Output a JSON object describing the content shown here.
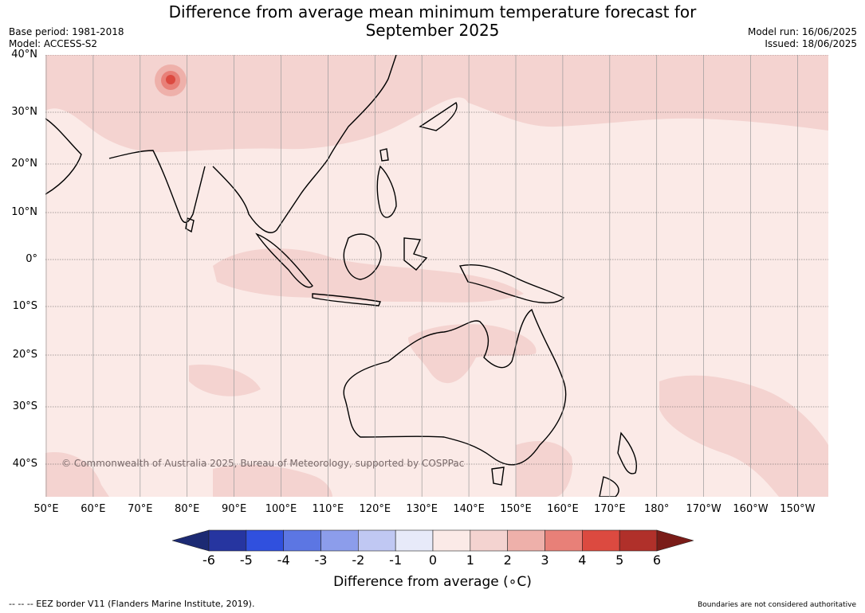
{
  "title": {
    "line1": "Difference from average mean minimum temperature forecast for",
    "line2": "September 2025"
  },
  "meta_left": {
    "base_period": "Base period: 1981-2018",
    "model": "Model: ACCESS-S2"
  },
  "meta_right": {
    "model_run": "Model run: 16/06/2025",
    "issued": "Issued: 18/06/2025"
  },
  "map": {
    "lat_labels": [
      "40°N",
      "30°N",
      "20°N",
      "10°N",
      "0°",
      "10°S",
      "20°S",
      "30°S",
      "40°S"
    ],
    "lon_labels": [
      "50°E",
      "60°E",
      "70°E",
      "80°E",
      "90°E",
      "100°E",
      "110°E",
      "120°E",
      "130°E",
      "140°E",
      "150°E",
      "160°E",
      "170°E",
      "180°",
      "170°W",
      "160°W",
      "150°W"
    ],
    "copyright": "© Commonwealth of Australia 2025, Bureau of Meteorology, supported by COSPPac",
    "region": "Indo-Pacific",
    "extent": {
      "lon_min": 50,
      "lon_max": 216,
      "lat_min": -46,
      "lat_max": 40
    }
  },
  "colorbar": {
    "label": "Difference from average (∘C)",
    "ticks": [
      "-6",
      "-5",
      "-4",
      "-3",
      "-2",
      "-1",
      "0",
      "1",
      "2",
      "3",
      "4",
      "5",
      "6"
    ],
    "colors": [
      "#2635a0",
      "#3050de",
      "#5c76e3",
      "#8c9deb",
      "#c0c8f3",
      "#e7eaf9",
      "#fbeae7",
      "#f4d3d0",
      "#eeb0aa",
      "#e88078",
      "#dc4a40",
      "#b0302a"
    ],
    "under_color": "#1c2a73",
    "over_color": "#7a1c18"
  },
  "footer": {
    "left": "--  --  -- EEZ border V11 (Flanders Marine Institute, 2019).",
    "right": "Boundaries are not considered authoritative"
  }
}
